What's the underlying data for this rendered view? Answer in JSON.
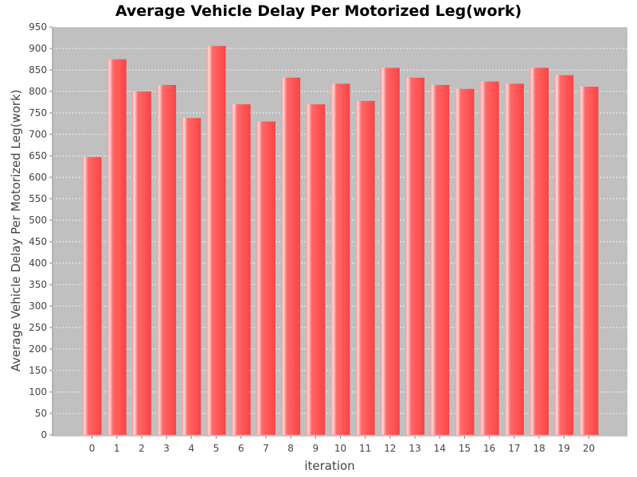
{
  "chart_data": {
    "type": "bar",
    "title": "Average Vehicle Delay Per Motorized Leg(work)",
    "xlabel": "iteration",
    "ylabel": "Average Vehicle Delay Per Motorized Leg(work)",
    "categories": [
      "0",
      "1",
      "2",
      "3",
      "4",
      "5",
      "6",
      "7",
      "8",
      "9",
      "10",
      "11",
      "12",
      "13",
      "14",
      "15",
      "16",
      "17",
      "18",
      "19",
      "20"
    ],
    "values": [
      647,
      875,
      800,
      815,
      738,
      906,
      770,
      730,
      832,
      770,
      818,
      778,
      855,
      832,
      815,
      806,
      823,
      818,
      855,
      838,
      811
    ],
    "ylim": [
      0,
      950
    ],
    "yticks": [
      0,
      50,
      100,
      150,
      200,
      250,
      300,
      350,
      400,
      450,
      500,
      550,
      600,
      650,
      700,
      750,
      800,
      850,
      900,
      950
    ],
    "grid": true,
    "legend": "none",
    "colors": {
      "plot_background": "#c0c0c0",
      "bar": "#ff5050",
      "bar_highlight": "#ffb0b0",
      "gridline": "#ffffff"
    }
  }
}
